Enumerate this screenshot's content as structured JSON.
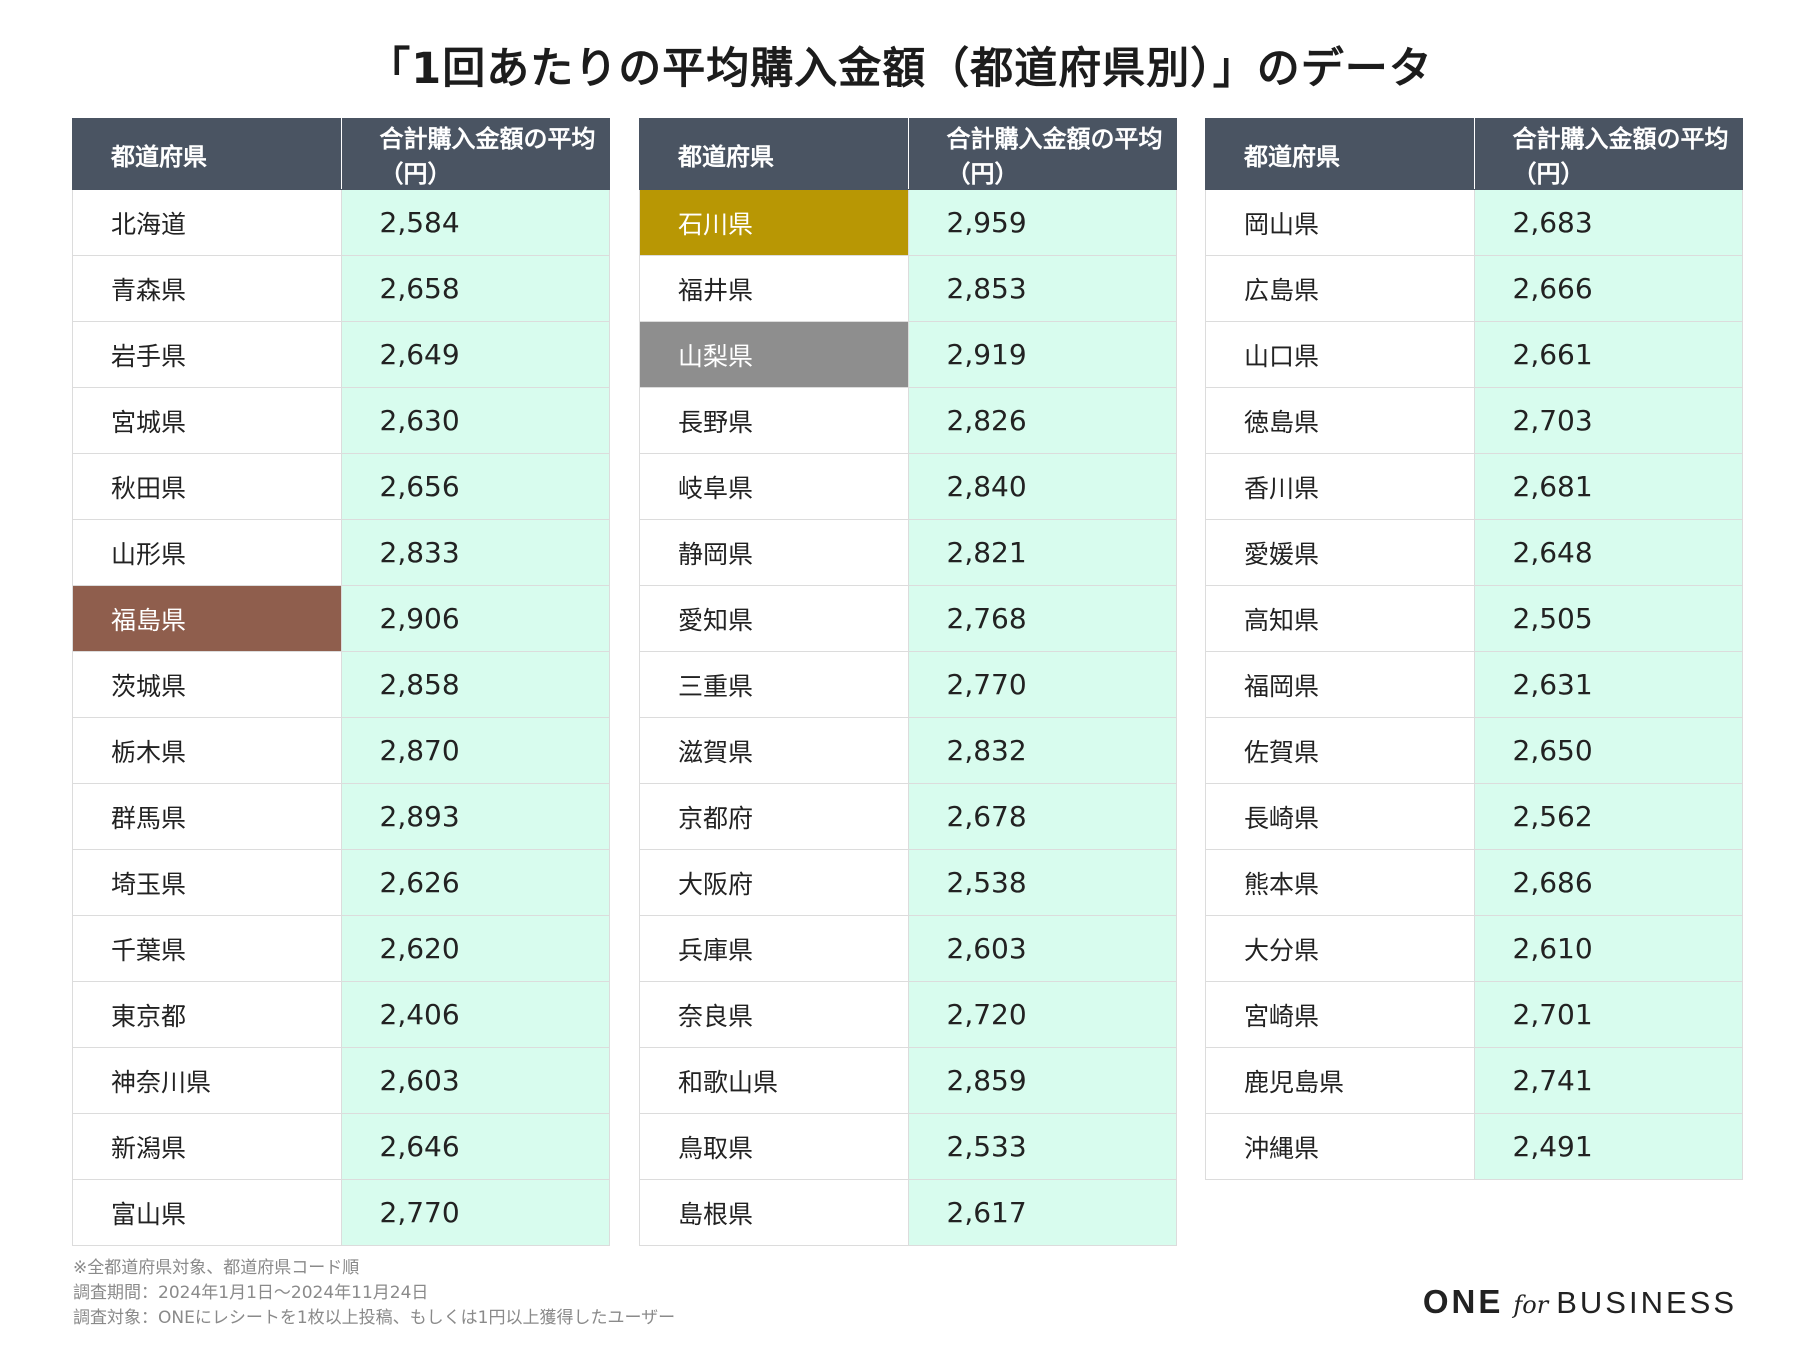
{
  "title": "「1回あたりの平均購入金額（都道府県別）」のデータ",
  "chart_data": {
    "type": "table",
    "columns": [
      "都道府県",
      "合計購入金額の平均（円）"
    ],
    "header_color": "#4a5462",
    "value_cell_color": "#d8fcee",
    "highlight_colors": {
      "brown": "#8f5e4d",
      "gold": "#b89704",
      "gray": "#8e8e8e"
    },
    "tables": [
      {
        "rows": [
          {
            "prefecture": "北海道",
            "value": "2,584"
          },
          {
            "prefecture": "青森県",
            "value": "2,658"
          },
          {
            "prefecture": "岩手県",
            "value": "2,649"
          },
          {
            "prefecture": "宮城県",
            "value": "2,630"
          },
          {
            "prefecture": "秋田県",
            "value": "2,656"
          },
          {
            "prefecture": "山形県",
            "value": "2,833"
          },
          {
            "prefecture": "福島県",
            "value": "2,906",
            "highlight": "brown"
          },
          {
            "prefecture": "茨城県",
            "value": "2,858"
          },
          {
            "prefecture": "栃木県",
            "value": "2,870"
          },
          {
            "prefecture": "群馬県",
            "value": "2,893"
          },
          {
            "prefecture": "埼玉県",
            "value": "2,626"
          },
          {
            "prefecture": "千葉県",
            "value": "2,620"
          },
          {
            "prefecture": "東京都",
            "value": "2,406"
          },
          {
            "prefecture": "神奈川県",
            "value": "2,603"
          },
          {
            "prefecture": "新潟県",
            "value": "2,646"
          },
          {
            "prefecture": "富山県",
            "value": "2,770"
          }
        ]
      },
      {
        "rows": [
          {
            "prefecture": "石川県",
            "value": "2,959",
            "highlight": "gold"
          },
          {
            "prefecture": "福井県",
            "value": "2,853"
          },
          {
            "prefecture": "山梨県",
            "value": "2,919",
            "highlight": "gray"
          },
          {
            "prefecture": "長野県",
            "value": "2,826"
          },
          {
            "prefecture": "岐阜県",
            "value": "2,840"
          },
          {
            "prefecture": "静岡県",
            "value": "2,821"
          },
          {
            "prefecture": "愛知県",
            "value": "2,768"
          },
          {
            "prefecture": "三重県",
            "value": "2,770"
          },
          {
            "prefecture": "滋賀県",
            "value": "2,832"
          },
          {
            "prefecture": "京都府",
            "value": "2,678"
          },
          {
            "prefecture": "大阪府",
            "value": "2,538"
          },
          {
            "prefecture": "兵庫県",
            "value": "2,603"
          },
          {
            "prefecture": "奈良県",
            "value": "2,720"
          },
          {
            "prefecture": "和歌山県",
            "value": "2,859"
          },
          {
            "prefecture": "鳥取県",
            "value": "2,533"
          },
          {
            "prefecture": "島根県",
            "value": "2,617"
          }
        ]
      },
      {
        "rows": [
          {
            "prefecture": "岡山県",
            "value": "2,683"
          },
          {
            "prefecture": "広島県",
            "value": "2,666"
          },
          {
            "prefecture": "山口県",
            "value": "2,661"
          },
          {
            "prefecture": "徳島県",
            "value": "2,703"
          },
          {
            "prefecture": "香川県",
            "value": "2,681"
          },
          {
            "prefecture": "愛媛県",
            "value": "2,648"
          },
          {
            "prefecture": "高知県",
            "value": "2,505"
          },
          {
            "prefecture": "福岡県",
            "value": "2,631"
          },
          {
            "prefecture": "佐賀県",
            "value": "2,650"
          },
          {
            "prefecture": "長崎県",
            "value": "2,562"
          },
          {
            "prefecture": "熊本県",
            "value": "2,686"
          },
          {
            "prefecture": "大分県",
            "value": "2,610"
          },
          {
            "prefecture": "宮崎県",
            "value": "2,701"
          },
          {
            "prefecture": "鹿児島県",
            "value": "2,741"
          },
          {
            "prefecture": "沖縄県",
            "value": "2,491"
          }
        ]
      }
    ]
  },
  "footnotes": [
    "※全都道府県対象、都道府県コード順",
    "調査期間：2024年1月1日〜2024年11月24日",
    "調査対象：ONEにレシートを1枚以上投稿、もしくは1円以上獲得したユーザー"
  ],
  "logo": {
    "one": "ONE",
    "for": "for",
    "business": "BUSINESS"
  }
}
